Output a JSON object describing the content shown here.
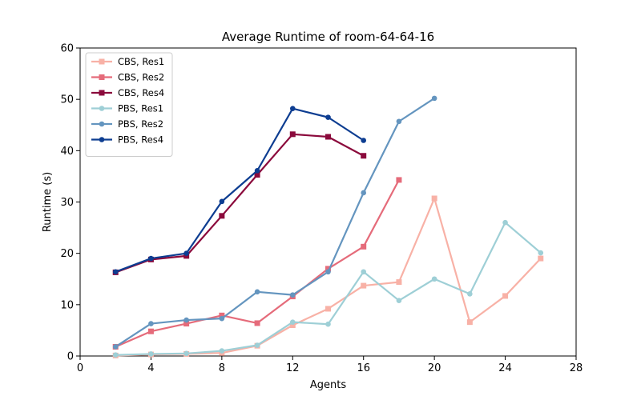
{
  "chart_data": {
    "type": "line",
    "title": "Average Runtime of room-64-64-16",
    "xlabel": "Agents",
    "ylabel": "Runtime (s)",
    "xlim": [
      0,
      28
    ],
    "ylim": [
      0,
      60
    ],
    "xticks": [
      0,
      4,
      8,
      12,
      16,
      20,
      24,
      28
    ],
    "yticks": [
      0,
      10,
      20,
      30,
      40,
      50,
      60
    ],
    "grid": false,
    "legend_position": "upper-left",
    "series": [
      {
        "name": "CBS, Res1",
        "color": "#f8b1a6",
        "marker": "square",
        "x": [
          2,
          4,
          6,
          8,
          10,
          12,
          14,
          16,
          18,
          20,
          22,
          24,
          26
        ],
        "y": [
          0.1,
          0.3,
          0.4,
          0.6,
          2.0,
          6.0,
          9.2,
          13.7,
          14.4,
          30.7,
          6.6,
          11.7,
          19.0
        ]
      },
      {
        "name": "CBS, Res2",
        "color": "#e56b7a",
        "marker": "square",
        "x": [
          2,
          4,
          6,
          8,
          10,
          12,
          14,
          16,
          18
        ],
        "y": [
          1.8,
          4.8,
          6.3,
          7.9,
          6.4,
          11.6,
          17.0,
          21.3,
          34.3
        ]
      },
      {
        "name": "CBS, Res4",
        "color": "#8b0a3c",
        "marker": "square",
        "x": [
          2,
          4,
          6,
          8,
          10,
          12,
          14,
          16
        ],
        "y": [
          16.3,
          18.8,
          19.5,
          27.3,
          35.3,
          43.2,
          42.7,
          39.0
        ]
      },
      {
        "name": "PBS, Res1",
        "color": "#9ecfd6",
        "marker": "circle",
        "x": [
          2,
          4,
          6,
          8,
          10,
          12,
          14,
          16,
          18,
          20,
          22,
          24,
          26
        ],
        "y": [
          0.2,
          0.4,
          0.5,
          1.0,
          2.1,
          6.6,
          6.2,
          16.4,
          10.8,
          15.0,
          12.1,
          26.0,
          20.1
        ]
      },
      {
        "name": "PBS, Res2",
        "color": "#6495bf",
        "marker": "circle",
        "x": [
          2,
          4,
          6,
          8,
          10,
          12,
          14,
          16,
          18,
          20
        ],
        "y": [
          1.8,
          6.3,
          7.0,
          7.3,
          12.5,
          11.9,
          16.4,
          31.8,
          45.7,
          50.2
        ]
      },
      {
        "name": "PBS, Res4",
        "color": "#0d3d91",
        "marker": "circle",
        "x": [
          2,
          4,
          6,
          8,
          10,
          12,
          14,
          16
        ],
        "y": [
          16.4,
          19.0,
          20.0,
          30.1,
          36.1,
          48.2,
          46.5,
          42.0
        ]
      }
    ]
  }
}
